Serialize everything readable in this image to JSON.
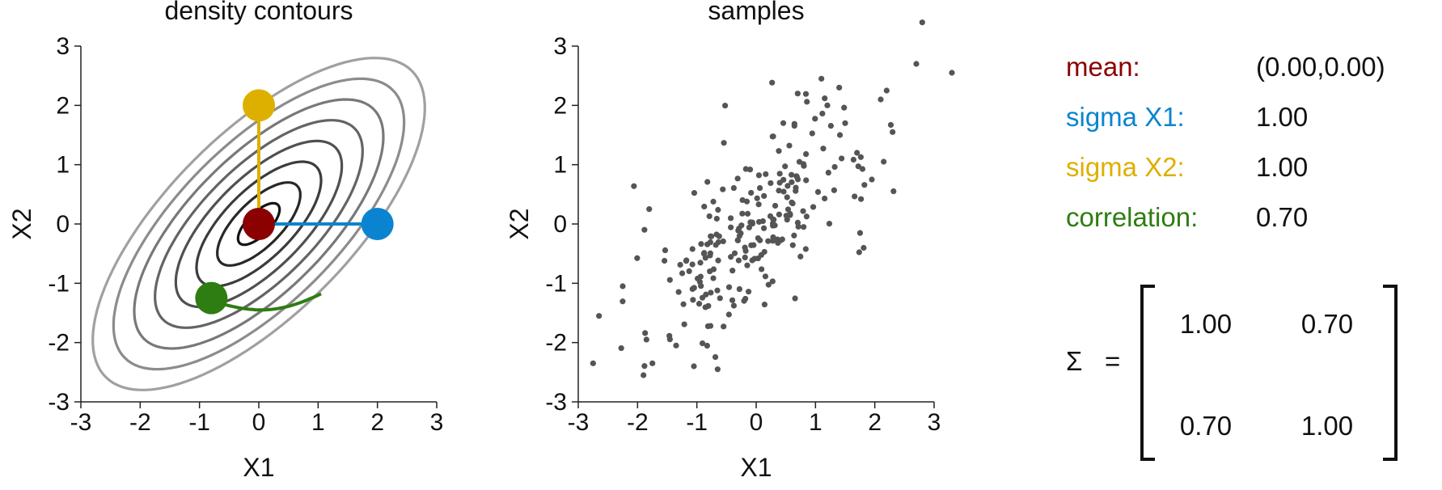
{
  "chart_data": [
    {
      "type": "contour",
      "title": "density contours",
      "xlabel": "X1",
      "ylabel": "X2",
      "xlim": [
        -3,
        3
      ],
      "ylim": [
        -3,
        3
      ],
      "xticks": [
        "-3",
        "-2",
        "-1",
        "0",
        "1",
        "2",
        "3"
      ],
      "yticks": [
        "-3",
        "-2",
        "-1",
        "0",
        "1",
        "2",
        "3"
      ],
      "mean": [
        0,
        0
      ],
      "sigma_x1": 1.0,
      "sigma_x2": 1.0,
      "correlation": 0.7,
      "contour_levels": 8,
      "handles": [
        {
          "name": "mean",
          "x": 0,
          "y": 0,
          "color": "#8b0000"
        },
        {
          "name": "sigma X1",
          "x": 2,
          "y": 0,
          "color": "#0a84d0"
        },
        {
          "name": "sigma X2",
          "x": 0,
          "y": 2,
          "color": "#ddb000"
        },
        {
          "name": "correlation",
          "x": -0.8,
          "y": -1.25,
          "color": "#2e7d12"
        }
      ]
    },
    {
      "type": "scatter",
      "title": "samples",
      "xlabel": "X1",
      "ylabel": "X2",
      "xlim": [
        -3,
        3
      ],
      "ylim": [
        -3,
        3
      ],
      "xticks": [
        "-3",
        "-2",
        "-1",
        "0",
        "1",
        "2",
        "3"
      ],
      "yticks": [
        "-3",
        "-2",
        "-1",
        "0",
        "1",
        "2",
        "3"
      ],
      "n_points": 250,
      "points": [
        [
          2.8,
          3.4
        ],
        [
          2.7,
          2.7
        ],
        [
          3.3,
          2.55
        ],
        [
          1.1,
          2.45
        ],
        [
          2.2,
          2.25
        ],
        [
          2.1,
          2.1
        ],
        [
          -2.75,
          -2.35
        ],
        [
          -2.65,
          -1.55
        ],
        [
          -2.25,
          -1.05
        ],
        [
          -1.9,
          -2.55
        ],
        [
          -1.75,
          -2.35
        ],
        [
          -1.85,
          -1.95
        ],
        [
          -1.35,
          -2.05
        ],
        [
          -1.05,
          -2.4
        ],
        [
          -0.65,
          -2.45
        ],
        [
          1.5,
          1.7
        ],
        [
          1.7,
          1.2
        ],
        [
          0.7,
          2.2
        ],
        [
          1.4,
          2.3
        ],
        [
          1.2,
          2.0
        ],
        [
          2.3,
          1.55
        ],
        [
          2.15,
          1.05
        ],
        [
          1.95,
          0.75
        ]
      ]
    }
  ],
  "params": [
    {
      "label": "mean:",
      "value": "(0.00,0.00)",
      "color": "#8b0000"
    },
    {
      "label": "sigma X1:",
      "value": "1.00",
      "color": "#0a84d0"
    },
    {
      "label": "sigma X2:",
      "value": "1.00",
      "color": "#ddb000"
    },
    {
      "label": "correlation:",
      "value": "0.70",
      "color": "#2e7d12"
    }
  ],
  "matrix": {
    "symbol": "Σ",
    "equals": "=",
    "cells": [
      [
        "1.00",
        "0.70"
      ],
      [
        "0.70",
        "1.00"
      ]
    ]
  }
}
